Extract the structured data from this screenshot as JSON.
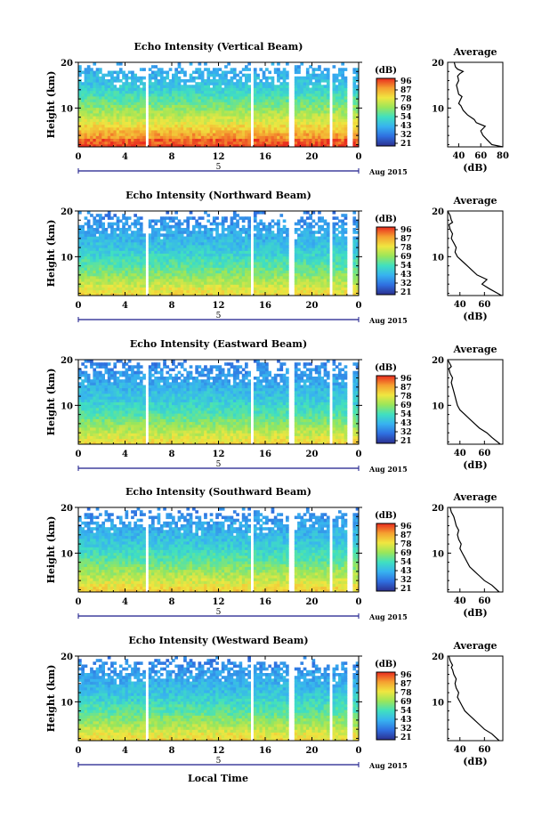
{
  "figure": {
    "xlabel": "Local Time",
    "date_label": "Aug 2015",
    "colorbar_unit": "(dB)",
    "colorbar_ticks": [
      "96",
      "87",
      "78",
      "69",
      "54",
      "43",
      "32",
      "21"
    ],
    "avg_title": "Average",
    "avg_xlabel": "(dB)"
  },
  "chart_data": [
    {
      "type": "heatmap",
      "title": "Echo Intensity (Vertical Beam)",
      "ylabel": "Height (km)",
      "x_ticks": [
        "0",
        "4",
        "8",
        "12",
        "16",
        "20",
        "0"
      ],
      "y_ticks": [
        "20",
        "10"
      ],
      "xlim": [
        0,
        24
      ],
      "ylim": [
        1.5,
        20
      ],
      "data_gaps_hours": [
        [
          5.7,
          6.0
        ],
        [
          14.7,
          15.0
        ],
        [
          18.0,
          18.4
        ],
        [
          21.5,
          21.8
        ],
        [
          23.1,
          23.4
        ]
      ],
      "colorscale": {
        "min": 21,
        "max": 96,
        "colors": [
          "#2b2f8f",
          "#2f6fe0",
          "#37b2f0",
          "#40e0c0",
          "#9ae65a",
          "#f0e640",
          "#f5a030",
          "#e82a1e"
        ]
      },
      "profile": {
        "values": [
          95,
          92,
          91,
          85,
          84,
          81,
          78,
          76,
          73,
          71,
          69,
          67,
          65,
          63,
          61,
          59,
          57,
          55,
          53,
          51,
          49,
          48,
          46,
          45,
          44,
          43,
          42,
          41,
          40,
          39
        ],
        "max_sustained_height_km": 18.6
      },
      "average_profile": {
        "type": "line",
        "xlim": [
          30,
          80
        ],
        "x_ticks": [
          "40",
          "60",
          "80"
        ],
        "y_ticks": [
          "20",
          "10"
        ],
        "x": [
          80,
          70,
          66,
          62,
          60,
          64,
          56,
          54,
          48,
          44,
          42,
          40,
          41,
          43,
          40,
          39,
          38,
          40,
          39,
          41,
          44,
          39,
          37,
          36
        ],
        "y": [
          1.5,
          2.0,
          3.0,
          4.0,
          5.0,
          6.0,
          6.8,
          7.5,
          8.5,
          9.5,
          10.5,
          11.0,
          11.5,
          12.5,
          13.0,
          14.0,
          15.0,
          16.0,
          17.0,
          17.5,
          18.0,
          18.5,
          19.0,
          20.0
        ]
      }
    },
    {
      "type": "heatmap",
      "title": "Echo Intensity (Northward Beam)",
      "ylabel": "Height (km)",
      "x_ticks": [
        "0",
        "4",
        "8",
        "12",
        "16",
        "20",
        "0"
      ],
      "y_ticks": [
        "20",
        "10"
      ],
      "xlim": [
        0,
        24
      ],
      "ylim": [
        1.5,
        20
      ],
      "data_gaps_hours": [
        [
          5.7,
          6.0
        ],
        [
          14.7,
          15.0
        ],
        [
          18.0,
          18.4
        ],
        [
          21.5,
          21.8
        ],
        [
          23.1,
          23.4
        ]
      ],
      "colorscale": {
        "min": 21,
        "max": 96,
        "colors": [
          "#2b2f8f",
          "#2f6fe0",
          "#37b2f0",
          "#40e0c0",
          "#9ae65a",
          "#f0e640",
          "#f5a030",
          "#e82a1e"
        ]
      },
      "profile": {
        "values": [
          76,
          74,
          73,
          70,
          68,
          66,
          64,
          62,
          60,
          58,
          56,
          55,
          54,
          52,
          50,
          49,
          47,
          46,
          45,
          44,
          43,
          42,
          41,
          40,
          39,
          38,
          37,
          36,
          35,
          34
        ],
        "max_sustained_height_km": 18.6
      },
      "average_profile": {
        "type": "line",
        "xlim": [
          30,
          75
        ],
        "x_ticks": [
          "40",
          "60"
        ],
        "y_ticks": [
          "20",
          "10"
        ],
        "x": [
          74,
          64,
          58,
          62,
          54,
          50,
          46,
          42,
          38,
          36,
          37,
          35,
          33,
          34,
          32,
          31,
          34,
          33,
          32,
          30
        ],
        "y": [
          1.5,
          3.0,
          4.0,
          5.0,
          6.0,
          7.0,
          8.0,
          9.0,
          10.0,
          11.0,
          12.0,
          13.0,
          14.0,
          15.0,
          16.0,
          17.0,
          17.5,
          18.0,
          19.0,
          20.0
        ]
      }
    },
    {
      "type": "heatmap",
      "title": "Echo Intensity (Eastward Beam)",
      "ylabel": "Height (km)",
      "x_ticks": [
        "0",
        "4",
        "8",
        "12",
        "16",
        "20",
        "0"
      ],
      "y_ticks": [
        "20",
        "10"
      ],
      "xlim": [
        0,
        24
      ],
      "ylim": [
        1.5,
        20
      ],
      "data_gaps_hours": [
        [
          5.7,
          6.0
        ],
        [
          14.7,
          15.0
        ],
        [
          18.0,
          18.4
        ],
        [
          21.5,
          21.8
        ],
        [
          23.1,
          23.4
        ]
      ],
      "colorscale": {
        "min": 21,
        "max": 96,
        "colors": [
          "#2b2f8f",
          "#2f6fe0",
          "#37b2f0",
          "#40e0c0",
          "#9ae65a",
          "#f0e640",
          "#f5a030",
          "#e82a1e"
        ]
      },
      "profile": {
        "values": [
          76,
          74,
          72,
          70,
          68,
          66,
          64,
          62,
          60,
          58,
          56,
          54,
          53,
          51,
          50,
          48,
          47,
          46,
          45,
          44,
          43,
          42,
          41,
          40,
          39,
          38,
          37,
          36,
          35,
          34
        ],
        "max_sustained_height_km": 19.0
      },
      "average_profile": {
        "type": "line",
        "xlim": [
          30,
          75
        ],
        "x_ticks": [
          "40",
          "60"
        ],
        "y_ticks": [
          "20",
          "10"
        ],
        "x": [
          73,
          66,
          62,
          56,
          52,
          48,
          44,
          40,
          38,
          37,
          36,
          35,
          34,
          33,
          34,
          32,
          31,
          33,
          32,
          30
        ],
        "y": [
          1.5,
          3.0,
          4.0,
          5.0,
          6.0,
          7.0,
          8.0,
          9.0,
          10.0,
          11.0,
          12.0,
          13.0,
          14.0,
          15.0,
          16.0,
          17.0,
          18.0,
          18.5,
          19.0,
          20.0
        ]
      }
    },
    {
      "type": "heatmap",
      "title": "Echo Intensity (Southward Beam)",
      "ylabel": "Height (km)",
      "x_ticks": [
        "0",
        "4",
        "8",
        "12",
        "16",
        "20",
        "0"
      ],
      "y_ticks": [
        "20",
        "10"
      ],
      "xlim": [
        0,
        24
      ],
      "ylim": [
        1.5,
        20
      ],
      "data_gaps_hours": [
        [
          5.7,
          6.0
        ],
        [
          14.7,
          15.0
        ],
        [
          18.0,
          18.4
        ],
        [
          21.5,
          21.8
        ],
        [
          23.1,
          23.4
        ]
      ],
      "colorscale": {
        "min": 21,
        "max": 96,
        "colors": [
          "#2b2f8f",
          "#2f6fe0",
          "#37b2f0",
          "#40e0c0",
          "#9ae65a",
          "#f0e640",
          "#f5a030",
          "#e82a1e"
        ]
      },
      "profile": {
        "values": [
          78,
          76,
          74,
          72,
          70,
          68,
          66,
          64,
          62,
          60,
          58,
          56,
          55,
          53,
          52,
          50,
          48,
          47,
          46,
          45,
          44,
          43,
          42,
          41,
          40,
          39,
          38,
          37,
          36,
          35
        ],
        "max_sustained_height_km": 18.4
      },
      "average_profile": {
        "type": "line",
        "xlim": [
          30,
          75
        ],
        "x_ticks": [
          "40",
          "60"
        ],
        "y_ticks": [
          "20",
          "10"
        ],
        "x": [
          72,
          66,
          60,
          56,
          52,
          48,
          46,
          44,
          42,
          40,
          41,
          39,
          38,
          39,
          37,
          36,
          35,
          34,
          33,
          32
        ],
        "y": [
          1.5,
          3.0,
          4.0,
          5.0,
          6.0,
          7.0,
          8.0,
          9.0,
          10.0,
          11.0,
          12.0,
          13.0,
          14.0,
          15.0,
          16.0,
          17.0,
          18.0,
          18.5,
          19.0,
          20.0
        ]
      }
    },
    {
      "type": "heatmap",
      "title": "Echo Intensity (Westward Beam)",
      "ylabel": "Height (km)",
      "x_ticks": [
        "0",
        "4",
        "8",
        "12",
        "16",
        "20",
        "0"
      ],
      "y_ticks": [
        "20",
        "10"
      ],
      "xlim": [
        0,
        24
      ],
      "ylim": [
        1.5,
        20
      ],
      "data_gaps_hours": [
        [
          5.7,
          6.0
        ],
        [
          14.7,
          15.0
        ],
        [
          18.0,
          18.4
        ],
        [
          21.5,
          21.8
        ],
        [
          23.1,
          23.4
        ]
      ],
      "colorscale": {
        "min": 21,
        "max": 96,
        "colors": [
          "#2b2f8f",
          "#2f6fe0",
          "#37b2f0",
          "#40e0c0",
          "#9ae65a",
          "#f0e640",
          "#f5a030",
          "#e82a1e"
        ]
      },
      "profile": {
        "values": [
          76,
          74,
          73,
          70,
          68,
          66,
          64,
          62,
          60,
          58,
          56,
          55,
          54,
          52,
          50,
          49,
          47,
          46,
          45,
          44,
          43,
          42,
          41,
          40,
          39,
          38,
          37,
          36,
          35,
          34
        ],
        "max_sustained_height_km": 18.6
      },
      "average_profile": {
        "type": "line",
        "xlim": [
          30,
          75
        ],
        "x_ticks": [
          "40",
          "60"
        ],
        "y_ticks": [
          "20",
          "10"
        ],
        "x": [
          72,
          66,
          60,
          56,
          52,
          48,
          44,
          42,
          40,
          38,
          39,
          37,
          36,
          37,
          35,
          34,
          33,
          34,
          32,
          31
        ],
        "y": [
          1.5,
          3.0,
          4.0,
          5.0,
          6.0,
          7.0,
          8.0,
          9.0,
          10.0,
          11.0,
          12.0,
          13.0,
          14.0,
          15.0,
          16.0,
          17.0,
          17.5,
          18.0,
          19.0,
          20.0
        ]
      }
    }
  ]
}
